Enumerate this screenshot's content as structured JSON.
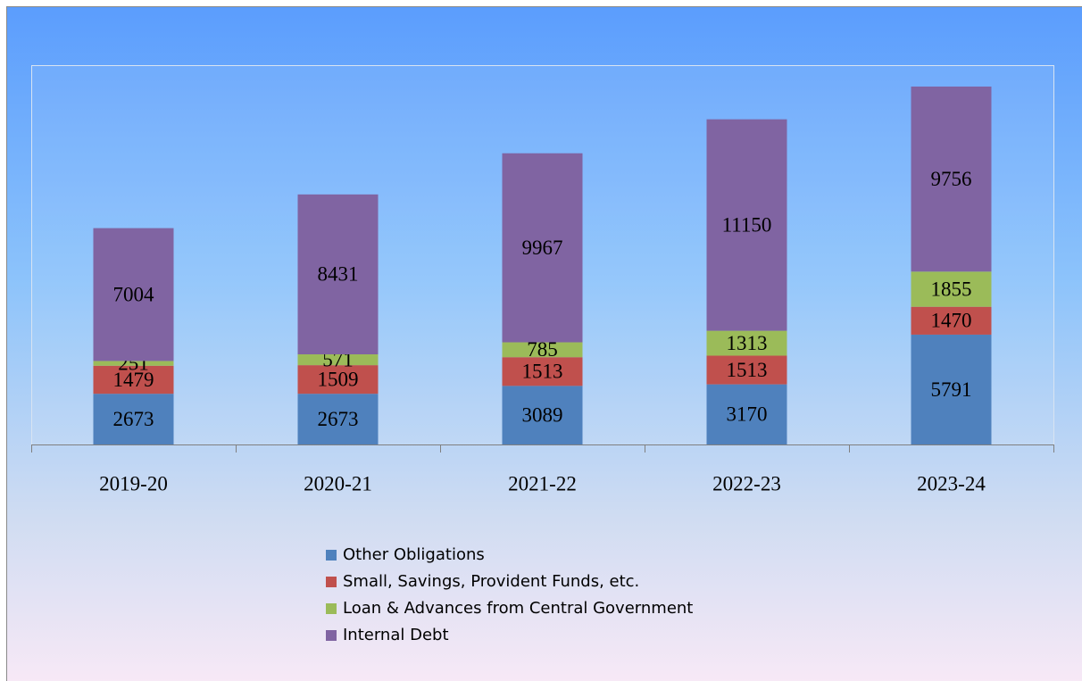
{
  "chart_data": {
    "type": "bar",
    "stacked": true,
    "categories": [
      "2019-20",
      "2020-21",
      "2021-22",
      "2022-23",
      "2023-24"
    ],
    "series": [
      {
        "name": "Other Obligations",
        "color": "#4f81bd",
        "values": [
          2673,
          2673,
          3089,
          3170,
          5791
        ]
      },
      {
        "name": "Small, Savings, Provident Funds, etc.",
        "color": "#c0504d",
        "values": [
          1479,
          1509,
          1513,
          1513,
          1470
        ]
      },
      {
        "name": "Loan & Advances from Central Government",
        "color": "#9bbb59",
        "values": [
          251,
          571,
          785,
          1313,
          1855
        ]
      },
      {
        "name": "Internal Debt",
        "color": "#8064a2",
        "values": [
          7004,
          8431,
          9967,
          11150,
          9756
        ]
      }
    ],
    "ylim": [
      0,
      20000
    ],
    "legend": "bottom"
  }
}
